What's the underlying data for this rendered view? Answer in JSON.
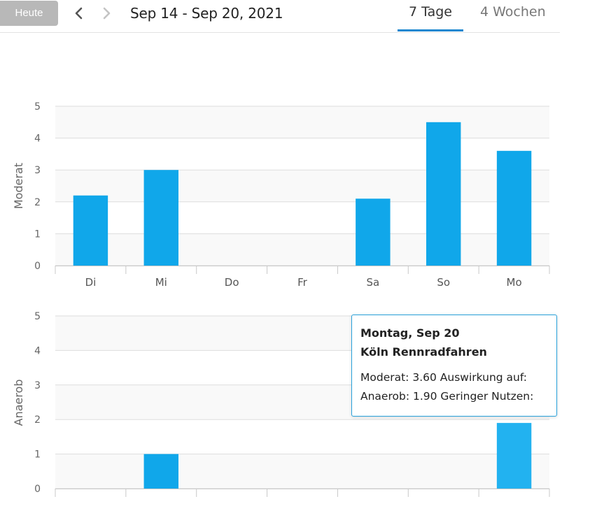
{
  "toolbar": {
    "today_label": "Heute",
    "date_range": "Sep 14 - Sep 20, 2021",
    "tabs": [
      {
        "label": "7 Tage",
        "active": true
      },
      {
        "label": "4 Wochen",
        "active": false
      }
    ]
  },
  "colors": {
    "bar": "#10a7ea",
    "bar_highlight": "#22b2f0",
    "grid": "#dddddd",
    "plot_band": "#f9f9f9",
    "tab_underline": "#1a87d0",
    "tooltip_border": "#2aa3dc"
  },
  "chart_data": [
    {
      "type": "bar",
      "ylabel": "Moderat",
      "categories": [
        "Di",
        "Mi",
        "Do",
        "Fr",
        "Sa",
        "So",
        "Mo"
      ],
      "values": [
        2.2,
        3.0,
        0,
        0,
        2.1,
        4.5,
        3.6
      ],
      "ylim": [
        0,
        5
      ],
      "yticks": [
        "0",
        "1",
        "2",
        "3",
        "4",
        "5"
      ],
      "grid": true
    },
    {
      "type": "bar",
      "ylabel": "Anaerob",
      "categories": [
        "Di",
        "Mi",
        "Do",
        "Fr",
        "Sa",
        "So",
        "Mo"
      ],
      "values": [
        0,
        1.0,
        0,
        0,
        0,
        0,
        1.9
      ],
      "ylim": [
        0,
        5
      ],
      "yticks": [
        "0",
        "1",
        "2",
        "3",
        "4",
        "5"
      ],
      "grid": true,
      "highlight_index": 6
    }
  ],
  "tooltip": {
    "title": "Montag, Sep 20",
    "subtitle": "Köln Rennradfahren",
    "line1": "Moderat: 3.60 Auswirkung auf:",
    "line2": "Anaerob: 1.90 Geringer Nutzen:"
  }
}
